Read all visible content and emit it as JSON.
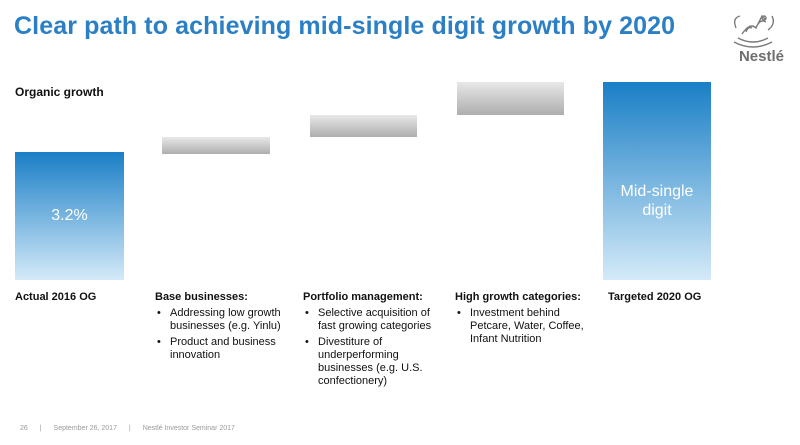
{
  "title": "Clear path to achieving mid-single digit growth by 2020",
  "logo": {
    "text": "Nestlé"
  },
  "chart_data": {
    "type": "bar",
    "subtype": "waterfall",
    "ylabel": "Organic growth",
    "categories": [
      "Actual 2016 OG",
      "Base businesses:",
      "Portfolio management:",
      "High growth categories:",
      "Targeted 2020 OG"
    ],
    "values": [
      3.2,
      null,
      null,
      null,
      null
    ],
    "data_labels": [
      "3.2%",
      "",
      "",
      "",
      "Mid-single digit"
    ],
    "colors": {
      "total_bar_top": "#1a7fc6",
      "total_bar_bottom": "#cfe7f6",
      "step_bar": "#b8b8b8",
      "title": "#2b7fc4"
    },
    "grid": false
  },
  "columns": [
    {
      "title": "Actual 2016 OG",
      "bullets": []
    },
    {
      "title": "Base businesses:",
      "bullets": [
        "Addressing low growth businesses (e.g. Yinlu)",
        "Product and business innovation"
      ]
    },
    {
      "title": "Portfolio management:",
      "bullets": [
        "Selective acquisition of fast growing categories",
        "Divestiture of underperforming businesses (e.g. U.S. confectionery)"
      ]
    },
    {
      "title": "High growth categories:",
      "bullets": [
        "Investment behind Petcare, Water, Coffee, Infant Nutrition"
      ]
    },
    {
      "title": "Targeted 2020 OG",
      "bullets": []
    }
  ],
  "footer": {
    "page": "26",
    "date": "September 26, 2017",
    "event": "Nestlé Investor Seminar 2017"
  }
}
